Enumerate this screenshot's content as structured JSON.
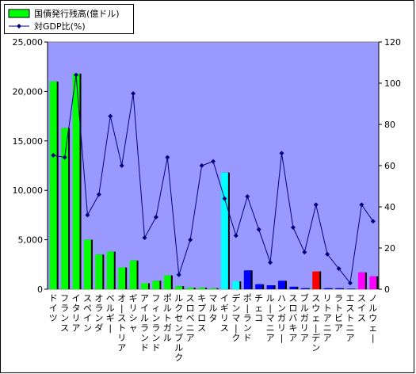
{
  "chart_data": {
    "type": "bar",
    "title": "",
    "xlabel": "",
    "ylabel": "",
    "categories": [
      "ドイツ",
      "フランス",
      "イタリア",
      "スペイン",
      "オランダ",
      "ベルギー",
      "オーストリア",
      "ギリシャ",
      "アイルランド",
      "フィンランド",
      "ポルトガル",
      "ルクセンブルク",
      "スロベニア",
      "キプロス",
      "マルタ",
      "イギリス",
      "デンマーク",
      "ポーランド",
      "チェコ",
      "ルーマニア",
      "ハンガリー",
      "スロバキア",
      "ブルガリア",
      "スウェーデン",
      "リトアニア",
      "ラトビア",
      "エストニア",
      "スイス",
      "ノルウェー"
    ],
    "series": [
      {
        "name": "国債発行残高(億ドル)",
        "axis": "left",
        "type": "bar",
        "values": [
          21000,
          16300,
          21800,
          5000,
          3500,
          3800,
          2200,
          2900,
          600,
          850,
          1400,
          300,
          150,
          150,
          100,
          11800,
          800,
          1900,
          500,
          400,
          850,
          250,
          100,
          1800,
          100,
          100,
          50,
          1700,
          1300
        ],
        "colors": [
          "#00ff00",
          "#00ff00",
          "#00ff00",
          "#00ff00",
          "#00ff00",
          "#00ff00",
          "#00ff00",
          "#00ff00",
          "#00ff00",
          "#00ff00",
          "#00ff00",
          "#00ff00",
          "#00ff00",
          "#00ff00",
          "#00ff00",
          "#00ffff",
          "#00ffff",
          "#0000ff",
          "#0000ff",
          "#0000ff",
          "#0000ff",
          "#0000ff",
          "#0000ff",
          "#ff0000",
          "#0000ff",
          "#0000ff",
          "#0000ff",
          "#ff00ff",
          "#ff00ff"
        ]
      },
      {
        "name": "対GDP比(%)",
        "axis": "right",
        "type": "line",
        "color": "#000080",
        "values": [
          65,
          64,
          104,
          36,
          46,
          84,
          60,
          95,
          25,
          35,
          64,
          7,
          24,
          60,
          62,
          44,
          26,
          45,
          29,
          13,
          66,
          30,
          18,
          41,
          17,
          10,
          3,
          41,
          33
        ]
      }
    ],
    "y_left": {
      "min": 0,
      "max": 25000,
      "ticks": [
        "0",
        "5,000",
        "10,000",
        "15,000",
        "20,000",
        "25,000"
      ]
    },
    "y_right": {
      "min": 0,
      "max": 120,
      "ticks": [
        "0",
        "20",
        "40",
        "60",
        "80",
        "100",
        "120"
      ]
    },
    "plot_background": "#9999ff",
    "legend_position": "top-left"
  }
}
